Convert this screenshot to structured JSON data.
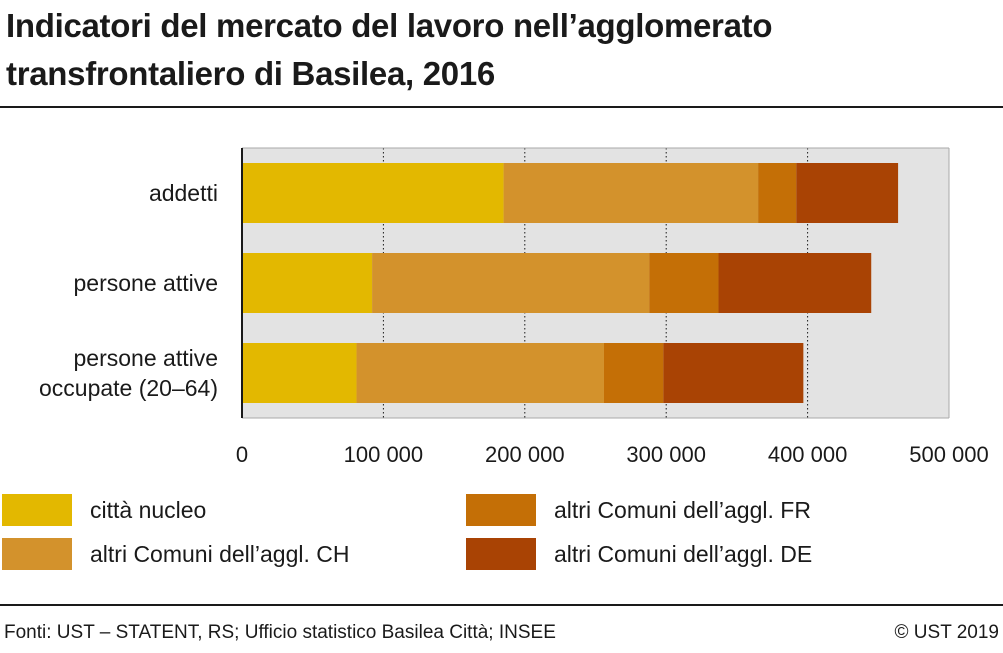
{
  "title": "Indicatori del mercato del lavoro nell’agglomerato transfrontaliero di Basilea, 2016",
  "source": "Fonti: UST – STATENT, RS; Ufficio statistico Basilea Città; INSEE",
  "copyright": "© UST 2019",
  "chart_data": {
    "type": "bar",
    "orientation": "horizontal",
    "stacked": true,
    "categories": [
      "addetti",
      "persone attive",
      "persone attive occupate (20–64)"
    ],
    "category_lines": [
      [
        "addetti"
      ],
      [
        "persone attive"
      ],
      [
        "persone attive",
        "occupate (20–64)"
      ]
    ],
    "series": [
      {
        "name": "città nucleo",
        "color": "#E3B800",
        "values": [
          185000,
          92000,
          81000
        ]
      },
      {
        "name": "altri Comuni dell’aggl. CH",
        "color": "#D3922C",
        "values": [
          180000,
          196000,
          175000
        ]
      },
      {
        "name": "altri Comuni dell’aggl. FR",
        "color": "#C46F06",
        "values": [
          27000,
          49000,
          42000
        ]
      },
      {
        "name": "altri Comuni dell’aggl. DE",
        "color": "#A94304",
        "values": [
          72000,
          108000,
          99000
        ]
      }
    ],
    "xlim": [
      0,
      500000
    ],
    "xticks": [
      0,
      100000,
      200000,
      300000,
      400000,
      500000
    ],
    "xtick_labels": [
      "0",
      "100 000",
      "200 000",
      "300 000",
      "400 000",
      "500 000"
    ],
    "grid": true,
    "plot_background": "#E3E3E3",
    "legend_position": "bottom"
  },
  "legend": {
    "items": [
      {
        "label": "città nucleo",
        "color": "#E3B800"
      },
      {
        "label": "altri Comuni dell’aggl. CH",
        "color": "#D3922C"
      },
      {
        "label": "altri Comuni dell’aggl. FR",
        "color": "#C46F06"
      },
      {
        "label": "altri Comuni dell’aggl. DE",
        "color": "#A94304"
      }
    ]
  }
}
